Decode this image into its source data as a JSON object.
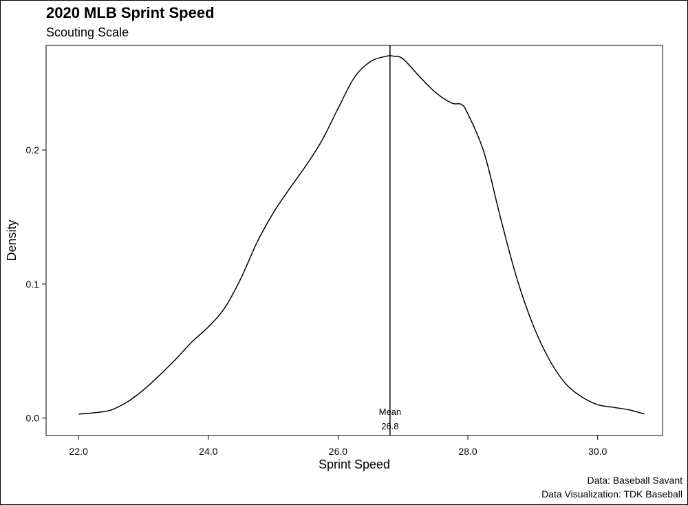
{
  "header": {
    "title": "2020 MLB Sprint Speed",
    "subtitle": "Scouting Scale"
  },
  "caption": {
    "source": "Data: Baseball Savant",
    "credit": "Data Visualization: TDK Baseball"
  },
  "chart_data": {
    "type": "line",
    "title": "2020 MLB Sprint Speed",
    "subtitle": "Scouting Scale",
    "xlabel": "Sprint Speed",
    "ylabel": "Density",
    "xlim": [
      21.5,
      31.0
    ],
    "ylim": [
      -0.013,
      0.278
    ],
    "x_ticks": [
      22.0,
      24.0,
      26.0,
      28.0,
      30.0
    ],
    "x_tick_labels": [
      "22.0",
      "24.0",
      "26.0",
      "28.0",
      "30.0"
    ],
    "y_ticks": [
      0.0,
      0.1,
      0.2
    ],
    "y_tick_labels": [
      "0.0",
      "0.1",
      "0.2"
    ],
    "grid": false,
    "legend": "none",
    "series": [
      {
        "x": [
          22.0,
          22.25,
          22.5,
          22.75,
          23.0,
          23.25,
          23.5,
          23.75,
          24.0,
          24.25,
          24.5,
          24.75,
          25.0,
          25.25,
          25.5,
          25.75,
          26.0,
          26.25,
          26.5,
          26.75,
          26.85,
          27.0,
          27.25,
          27.5,
          27.75,
          27.9,
          28.0,
          28.25,
          28.5,
          28.75,
          29.0,
          29.25,
          29.5,
          29.75,
          30.0,
          30.25,
          30.5,
          30.72
        ],
        "y": [
          0.003,
          0.004,
          0.006,
          0.012,
          0.021,
          0.032,
          0.044,
          0.057,
          0.068,
          0.082,
          0.104,
          0.131,
          0.153,
          0.171,
          0.188,
          0.207,
          0.231,
          0.254,
          0.266,
          0.27,
          0.27,
          0.268,
          0.255,
          0.243,
          0.235,
          0.234,
          0.227,
          0.198,
          0.15,
          0.105,
          0.07,
          0.044,
          0.026,
          0.016,
          0.01,
          0.008,
          0.006,
          0.003
        ]
      }
    ],
    "mean_line": {
      "x": 26.8,
      "label": "Mean",
      "value_label": "26.8"
    }
  }
}
